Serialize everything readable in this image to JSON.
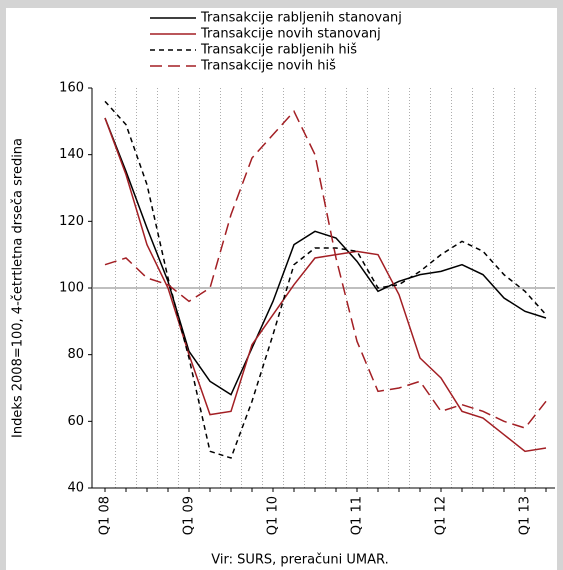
{
  "chart_data": {
    "type": "line",
    "y_label": "Indeks 2008=100, 4-četrtletna drseča sredina",
    "source": "Vir: SURS, preračuni UMAR.",
    "categories": [
      "Q1 08",
      null,
      null,
      null,
      "Q1 09",
      null,
      null,
      null,
      "Q1 10",
      null,
      null,
      null,
      "Q1 11",
      null,
      null,
      null,
      "Q1 12",
      null,
      null,
      null,
      "Q1 13",
      null
    ],
    "series": [
      {
        "name": "Transakcije rabljenih stanovanj",
        "color": "#000000",
        "dash": "none",
        "values": [
          151,
          135,
          118,
          102,
          81,
          72,
          68,
          82,
          96,
          113,
          117,
          115,
          108,
          99,
          102,
          104,
          105,
          107,
          104,
          97,
          93,
          91
        ]
      },
      {
        "name": "Transakcije novih stanovanj",
        "color": "#a31f24",
        "dash": "none",
        "values": [
          151,
          134,
          113,
          100,
          80,
          62,
          63,
          83,
          92,
          101,
          109,
          110,
          111,
          110,
          98,
          79,
          73,
          63,
          61,
          56,
          51,
          52
        ]
      },
      {
        "name": "Transakcije rabljenih hiš",
        "color": "#000000",
        "dash": "5,4",
        "values": [
          156,
          149,
          131,
          103,
          79,
          51,
          49,
          66,
          86,
          107,
          112,
          112,
          111,
          100,
          101,
          105,
          110,
          114,
          111,
          104,
          99,
          92
        ]
      },
      {
        "name": "Transakcije novih hiš",
        "color": "#a31f24",
        "dash": "12,6",
        "values": [
          107,
          109,
          103,
          101,
          96,
          100,
          122,
          139,
          146,
          153,
          140,
          109,
          84,
          69,
          70,
          72,
          63,
          65,
          63,
          60,
          58,
          66
        ]
      }
    ],
    "ylim": [
      40,
      160
    ],
    "yticks": [
      40,
      60,
      80,
      100,
      120,
      140,
      160
    ],
    "reference_line": 100,
    "grid": true
  }
}
